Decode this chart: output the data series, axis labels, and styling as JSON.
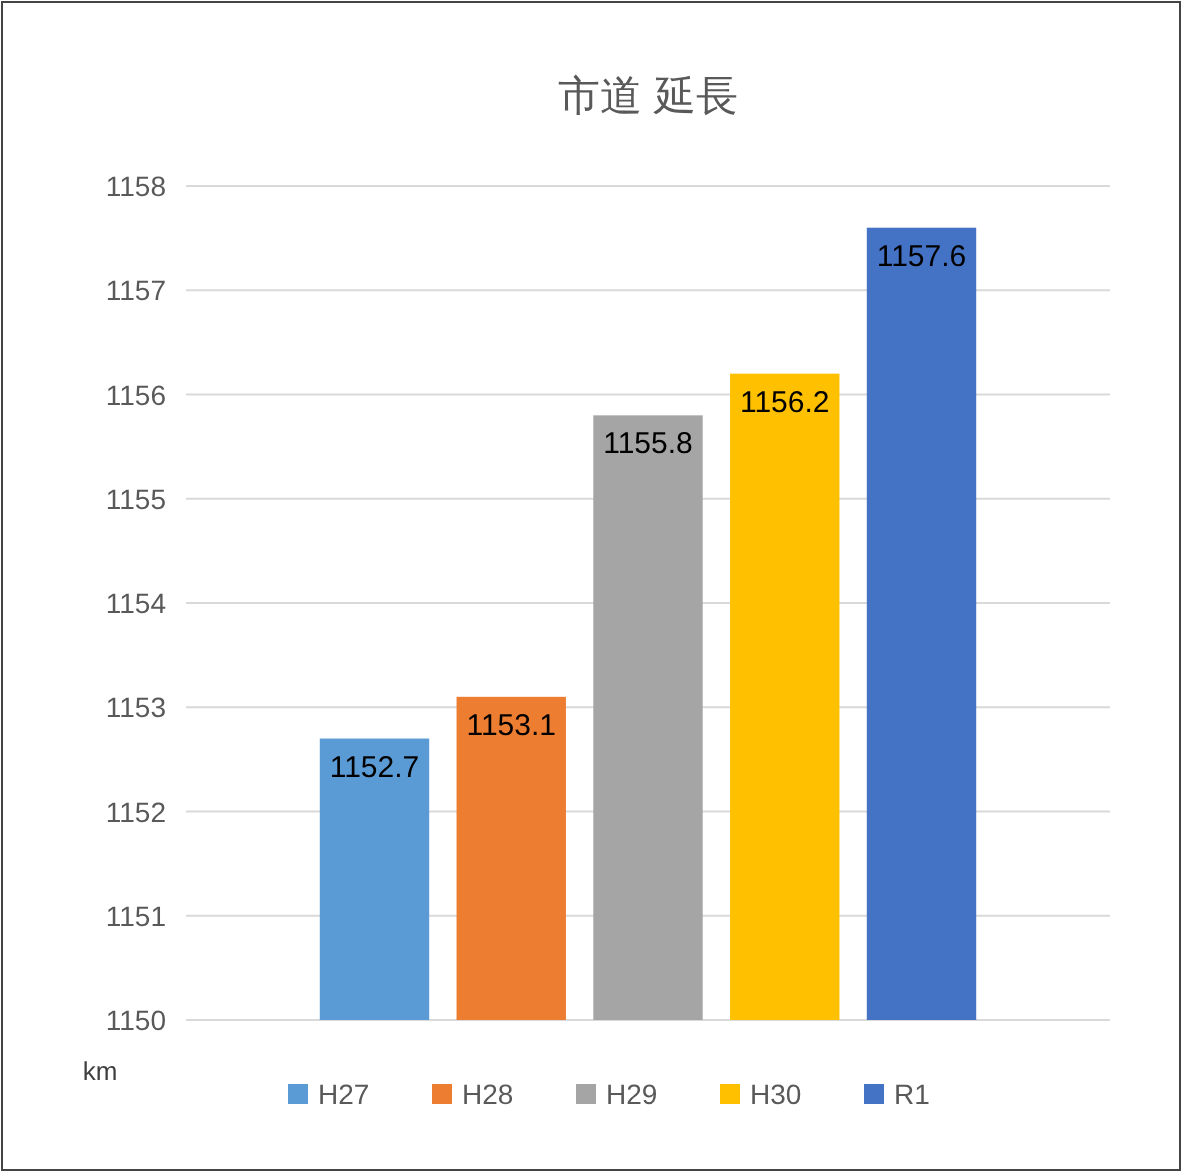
{
  "chart_data": {
    "type": "bar",
    "title": "市道 延長",
    "ylabel": "km",
    "categories": [
      null
    ],
    "series": [
      {
        "name": "H27",
        "color": "#5b9bd5",
        "values": [
          1152.7
        ]
      },
      {
        "name": "H28",
        "color": "#ed7d31",
        "values": [
          1153.1
        ]
      },
      {
        "name": "H29",
        "color": "#a5a5a5",
        "values": [
          1155.8
        ]
      },
      {
        "name": "H30",
        "color": "#ffc000",
        "values": [
          1156.2
        ]
      },
      {
        "name": "R1",
        "color": "#4472c4",
        "values": [
          1157.6
        ]
      }
    ],
    "ylim": [
      1150,
      1158
    ],
    "yticks": [
      1150,
      1151,
      1152,
      1153,
      1154,
      1155,
      1156,
      1157,
      1158
    ],
    "grid": "y",
    "legend": "bottom",
    "data_labels": true
  }
}
